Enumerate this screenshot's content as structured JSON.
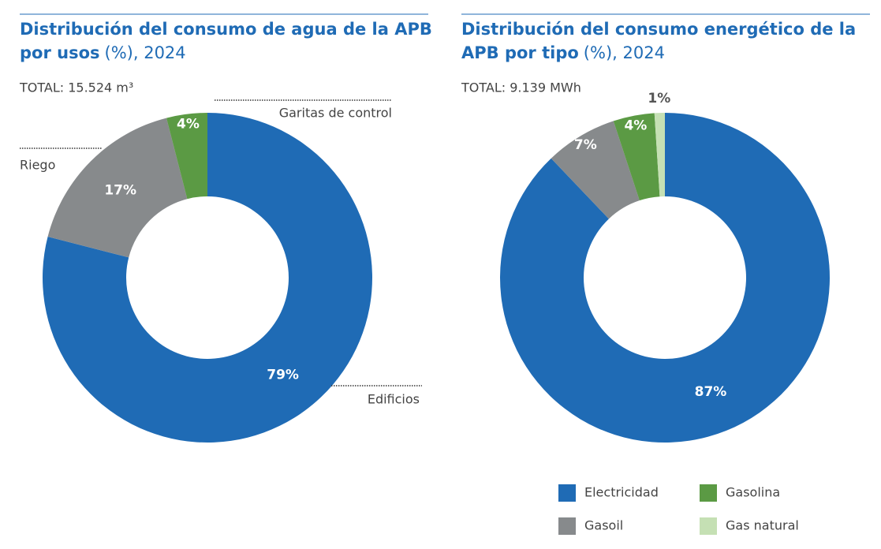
{
  "chart_data": [
    {
      "type": "pie",
      "title": "Distribución del consumo de agua de la APB por usos",
      "title_unit": "(%), 2024",
      "subtitle": "TOTAL: 15.524 m³",
      "categories": [
        "Edificios",
        "Riego",
        "Garitas de control"
      ],
      "values": [
        79,
        17,
        4
      ],
      "value_labels": [
        "79%",
        "17%",
        "4%"
      ],
      "colors": [
        "#1f6bb5",
        "#878a8c",
        "#5b9a44"
      ],
      "legend": "none"
    },
    {
      "type": "pie",
      "title": "Distribución del consumo energético de la APB por tipo",
      "title_unit": "(%), 2024",
      "subtitle": "TOTAL: 9.139 MWh",
      "categories": [
        "Electricidad",
        "Gasoil",
        "Gasolina",
        "Gas natural"
      ],
      "values": [
        87,
        7,
        4,
        1
      ],
      "value_labels": [
        "87%",
        "7%",
        "4%",
        "1%"
      ],
      "colors": [
        "#1f6bb5",
        "#878a8c",
        "#5b9a44",
        "#c5e0b4"
      ],
      "legend": "bottom"
    }
  ]
}
